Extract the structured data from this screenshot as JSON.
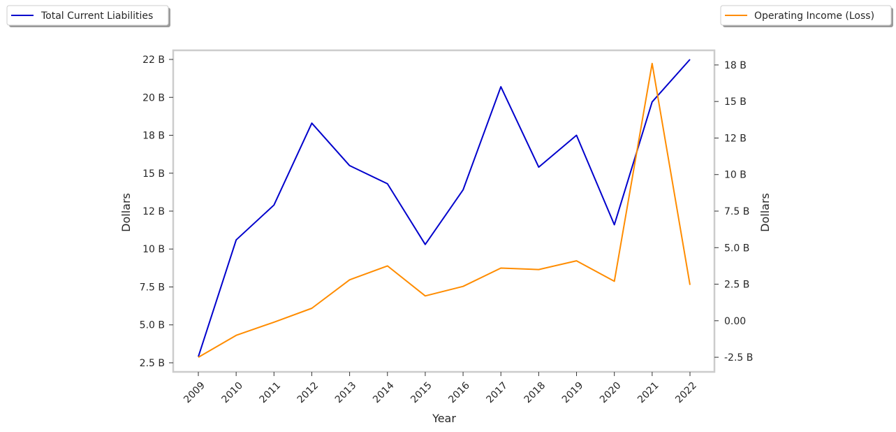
{
  "chart_data": {
    "type": "line",
    "xlabel": "Year",
    "ylabel_left": "Dollars",
    "ylabel_right": "Dollars",
    "x": [
      "2009",
      "2010",
      "2011",
      "2012",
      "2013",
      "2014",
      "2015",
      "2016",
      "2017",
      "2018",
      "2019",
      "2020",
      "2021",
      "2022"
    ],
    "left_axis": {
      "ylim": [
        1.9,
        23.1
      ],
      "ticks": [
        2.5,
        5.0,
        7.5,
        10,
        12.5,
        15,
        17.5,
        20,
        22.5
      ],
      "tick_labels": [
        "2.5 B",
        "5.0 B",
        "7.5 B",
        "10 B",
        "12 B",
        "15 B",
        "18 B",
        "20 B",
        "22 B"
      ]
    },
    "right_axis": {
      "ylim": [
        -3.5,
        18.5
      ],
      "ticks": [
        -2.5,
        0,
        2.5,
        5,
        7.5,
        10,
        12.5,
        15,
        17.5
      ],
      "tick_labels": [
        "-2.5 B",
        "0.00",
        "2.5 B",
        "5.0 B",
        "7.5 B",
        "10 B",
        "12 B",
        "15 B",
        "18 B"
      ]
    },
    "series": [
      {
        "name": "Total Current Liabilities",
        "axis": "left",
        "color": "#0000cc",
        "values": [
          2.9,
          10.6,
          12.9,
          18.3,
          15.5,
          14.3,
          10.3,
          13.9,
          20.7,
          15.4,
          17.5,
          11.6,
          19.7,
          22.5
        ]
      },
      {
        "name": "Operating Income (Loss)",
        "axis": "right",
        "color": "#ff8c00",
        "values": [
          -2.5,
          -1.0,
          -0.1,
          0.85,
          2.8,
          3.75,
          1.7,
          2.35,
          3.6,
          3.5,
          4.1,
          2.7,
          17.6,
          2.45
        ]
      }
    ],
    "legends": {
      "left": "Total Current Liabilities",
      "right": "Operating Income (Loss)"
    }
  }
}
